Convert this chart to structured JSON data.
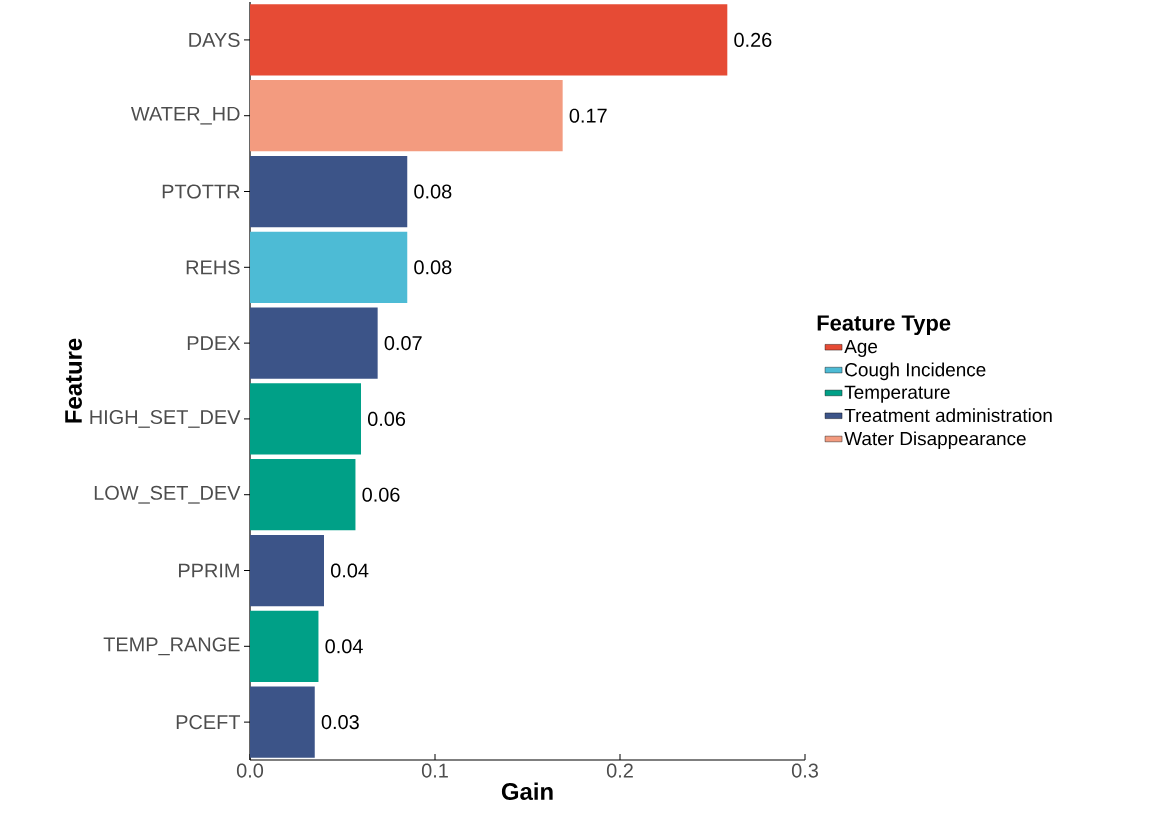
{
  "chart_data": {
    "type": "bar",
    "orientation": "horizontal",
    "xlabel": "Gain",
    "ylabel": "Feature",
    "legend_title": "Feature Type",
    "legend": "right",
    "grid": false,
    "categories": [
      "DAYS",
      "WATER_HD",
      "PTOTTR",
      "REHS",
      "PDEX",
      "HIGH_SET_DEV",
      "LOW_SET_DEV",
      "PPRIM",
      "TEMP_RANGE",
      "PCEFT"
    ],
    "xlim": [
      0,
      0.3
    ],
    "xticks": [
      {
        "value": 0,
        "label": "0.0"
      },
      0.1,
      0.2,
      0.3
    ],
    "series": [
      {
        "name": "Age",
        "color": "#e64b35",
        "values": [
          0.258,
          null,
          null,
          null,
          null,
          null,
          null,
          null,
          null,
          null
        ],
        "value_labels": [
          "0.26",
          null,
          null,
          null,
          null,
          null,
          null,
          null,
          null,
          null
        ]
      },
      {
        "name": "Cough Incidence",
        "color": "#4dbbd5",
        "values": [
          null,
          null,
          null,
          0.085,
          null,
          null,
          null,
          null,
          null,
          null
        ],
        "value_labels": [
          null,
          null,
          null,
          "0.08",
          null,
          null,
          null,
          null,
          null,
          null
        ]
      },
      {
        "name": "Temperature",
        "color": "#00a087",
        "values": [
          null,
          null,
          null,
          null,
          null,
          0.06,
          0.057,
          null,
          0.037,
          null
        ],
        "value_labels": [
          null,
          null,
          null,
          null,
          null,
          "0.06",
          "0.06",
          null,
          "0.04",
          null
        ]
      },
      {
        "name": "Treatment administration",
        "color": "#3c5488",
        "values": [
          null,
          null,
          0.085,
          null,
          0.069,
          null,
          null,
          0.04,
          null,
          0.035
        ],
        "value_labels": [
          null,
          null,
          "0.08",
          null,
          "0.07",
          null,
          null,
          "0.04",
          null,
          "0.03"
        ]
      },
      {
        "name": "Water Disappearance",
        "color": "#f39b7f",
        "values": [
          null,
          0.169,
          null,
          null,
          null,
          null,
          null,
          null,
          null,
          null
        ],
        "value_labels": [
          null,
          "0.17",
          null,
          null,
          null,
          null,
          null,
          null,
          null,
          null
        ]
      }
    ]
  }
}
